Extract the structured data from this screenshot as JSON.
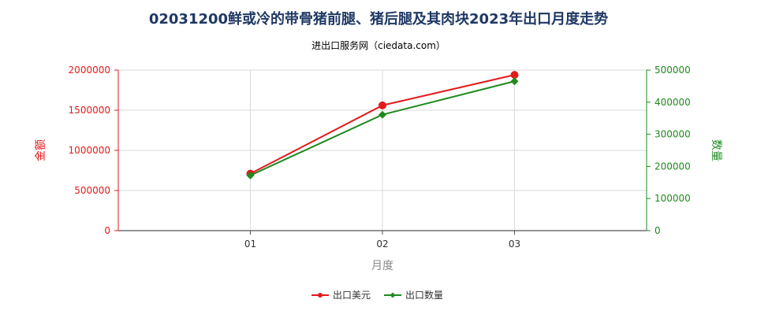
{
  "chart_data": {
    "type": "line",
    "title": "02031200鲜或冷的带骨猪前腿、猪后腿及其肉块2023年出口月度走势",
    "subtitle": "进出口服务网（ciedata.com）",
    "xlabel": "月度",
    "ylabel_left": "金额",
    "ylabel_right": "数量",
    "categories": [
      "01",
      "02",
      "03"
    ],
    "y_left_ticks": [
      "0",
      "500000",
      "1000000",
      "1500000",
      "2000000"
    ],
    "y_right_ticks": [
      "0",
      "100000",
      "200000",
      "300000",
      "400000",
      "500000"
    ],
    "ylim_left": [
      0,
      2000000
    ],
    "ylim_right": [
      0,
      500000
    ],
    "grid": true,
    "legend_position": "bottom",
    "series": [
      {
        "name": "出口美元",
        "axis": "left",
        "color": "#e31a1c",
        "marker": "circle",
        "values": [
          710000,
          1560000,
          1940000
        ]
      },
      {
        "name": "出口数量",
        "axis": "right",
        "color": "#1e8a1e",
        "marker": "diamond",
        "values": [
          172000,
          361000,
          465000
        ]
      }
    ]
  }
}
